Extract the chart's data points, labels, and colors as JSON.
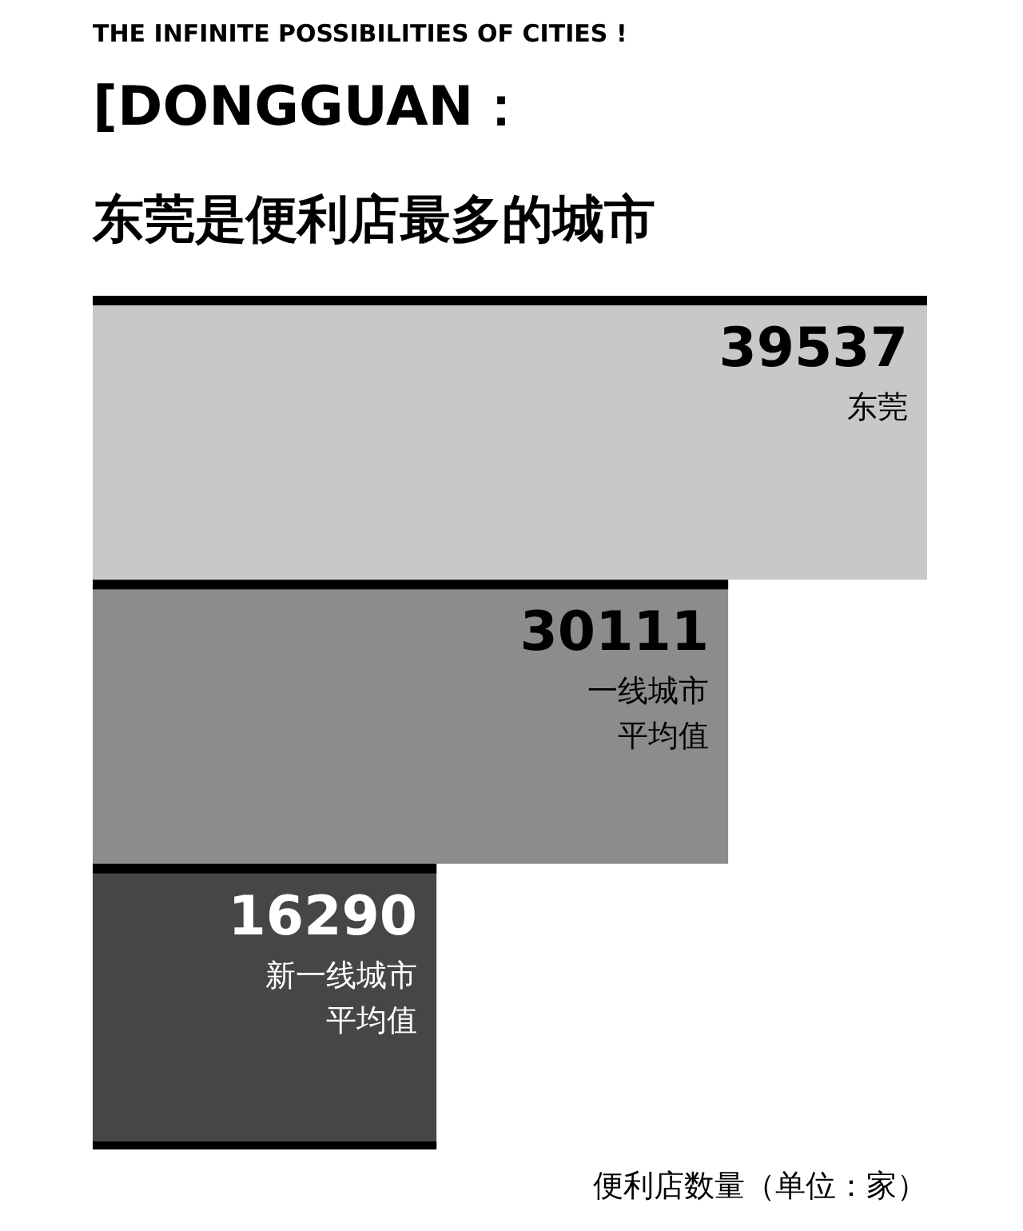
{
  "chart_data": {
    "type": "bar",
    "orientation": "horizontal",
    "title": "东莞是便利店最多的城市",
    "annotations": [
      "THE INFINITE POSSIBILITIES OF CITIES !",
      "[DONGGUAN："
    ],
    "categories": [
      "东莞",
      "一线城市平均值",
      "新一线城市平均值"
    ],
    "values": [
      39537,
      30111,
      16290
    ],
    "colors": [
      "#c8c8c8",
      "#8c8c8c",
      "#464646"
    ],
    "xlabel": "便利店数量（单位：家）",
    "data_labels": true
  }
}
